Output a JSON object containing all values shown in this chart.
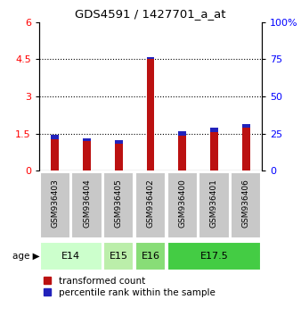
{
  "title": "GDS4591 / 1427701_a_at",
  "samples": [
    "GSM936403",
    "GSM936404",
    "GSM936405",
    "GSM936402",
    "GSM936400",
    "GSM936401",
    "GSM936406"
  ],
  "red_values": [
    1.28,
    1.18,
    1.08,
    4.52,
    1.4,
    1.55,
    1.72
  ],
  "blue_values": [
    0.18,
    0.12,
    0.16,
    0.07,
    0.18,
    0.18,
    0.17
  ],
  "age_groups": [
    {
      "label": "E14",
      "start": 0,
      "end": 1,
      "color": "#ccffcc"
    },
    {
      "label": "E15",
      "start": 2,
      "end": 2,
      "color": "#bbeeaa"
    },
    {
      "label": "E16",
      "start": 3,
      "end": 3,
      "color": "#88dd77"
    },
    {
      "label": "E17.5",
      "start": 4,
      "end": 6,
      "color": "#44cc44"
    }
  ],
  "ylim_left": [
    0,
    6
  ],
  "ylim_right": [
    0,
    100
  ],
  "yticks_left": [
    0,
    1.5,
    3.0,
    4.5,
    6.0
  ],
  "yticks_right": [
    0,
    25,
    50,
    75,
    100
  ],
  "bar_width": 0.25,
  "red_color": "#bb1111",
  "blue_color": "#2222bb",
  "bg_plot_color": "#ffffff",
  "bar_bg_color": "#c8c8c8",
  "legend_red": "transformed count",
  "legend_blue": "percentile rank within the sample"
}
